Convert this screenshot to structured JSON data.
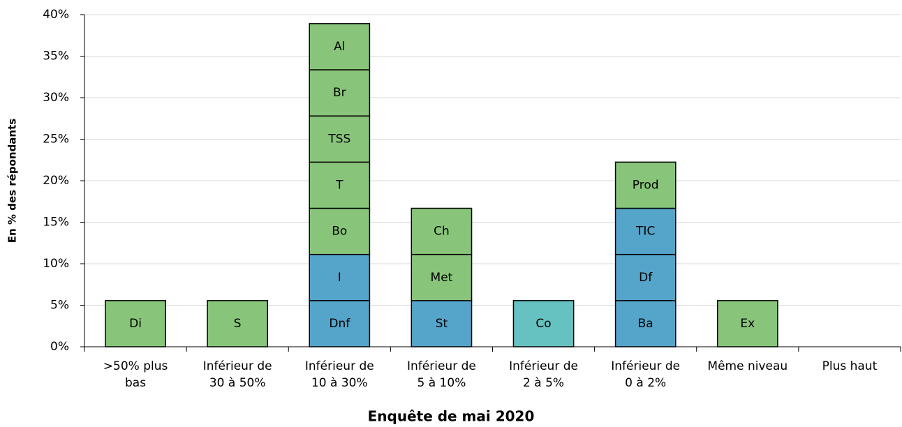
{
  "chart_data": {
    "type": "bar",
    "x_label": "Enquête de mai 2020",
    "y_label": "En % des répondants",
    "categories": [
      [
        ">50% plus",
        "bas"
      ],
      [
        "Inférieur de",
        "30 à 50%"
      ],
      [
        "Inférieur de",
        "10 à 30%"
      ],
      [
        "Inférieur de",
        "5 à 10%"
      ],
      [
        "Inférieur de",
        "2 à 5%"
      ],
      [
        "Inférieur de",
        "0 à 2%"
      ],
      [
        "Même niveau"
      ],
      [
        "Plus haut"
      ]
    ],
    "stacks": [
      [
        {
          "label": "Di",
          "value": 5.56,
          "color": "#88c57a"
        }
      ],
      [
        {
          "label": "S",
          "value": 5.56,
          "color": "#88c57a"
        }
      ],
      [
        {
          "label": "Dnf",
          "value": 5.56,
          "color": "#55a4c9"
        },
        {
          "label": "I",
          "value": 5.56,
          "color": "#55a4c9"
        },
        {
          "label": "Bo",
          "value": 5.56,
          "color": "#88c57a"
        },
        {
          "label": "T",
          "value": 5.56,
          "color": "#88c57a"
        },
        {
          "label": "TSS",
          "value": 5.56,
          "color": "#88c57a"
        },
        {
          "label": "Br",
          "value": 5.56,
          "color": "#88c57a"
        },
        {
          "label": "Al",
          "value": 5.56,
          "color": "#88c57a"
        }
      ],
      [
        {
          "label": "St",
          "value": 5.56,
          "color": "#55a4c9"
        },
        {
          "label": "Met",
          "value": 5.56,
          "color": "#88c57a"
        },
        {
          "label": "Ch",
          "value": 5.56,
          "color": "#88c57a"
        }
      ],
      [
        {
          "label": "Co",
          "value": 5.56,
          "color": "#66c2c0"
        }
      ],
      [
        {
          "label": "Ba",
          "value": 5.56,
          "color": "#55a4c9"
        },
        {
          "label": "Df",
          "value": 5.56,
          "color": "#55a4c9"
        },
        {
          "label": "TIC",
          "value": 5.56,
          "color": "#55a4c9"
        },
        {
          "label": "Prod",
          "value": 5.56,
          "color": "#88c57a"
        }
      ],
      [
        {
          "label": "Ex",
          "value": 5.56,
          "color": "#88c57a"
        }
      ],
      []
    ],
    "ylim": [
      0,
      40
    ],
    "yticks": [
      {
        "value": 0,
        "label": "0%"
      },
      {
        "value": 5,
        "label": "5%"
      },
      {
        "value": 10,
        "label": "10%"
      },
      {
        "value": 15,
        "label": "15%"
      },
      {
        "value": 20,
        "label": "20%"
      },
      {
        "value": 25,
        "label": "25%"
      },
      {
        "value": 30,
        "label": "30%"
      },
      {
        "value": 35,
        "label": "35%"
      },
      {
        "value": 40,
        "label": "40%"
      }
    ],
    "grid": true
  }
}
